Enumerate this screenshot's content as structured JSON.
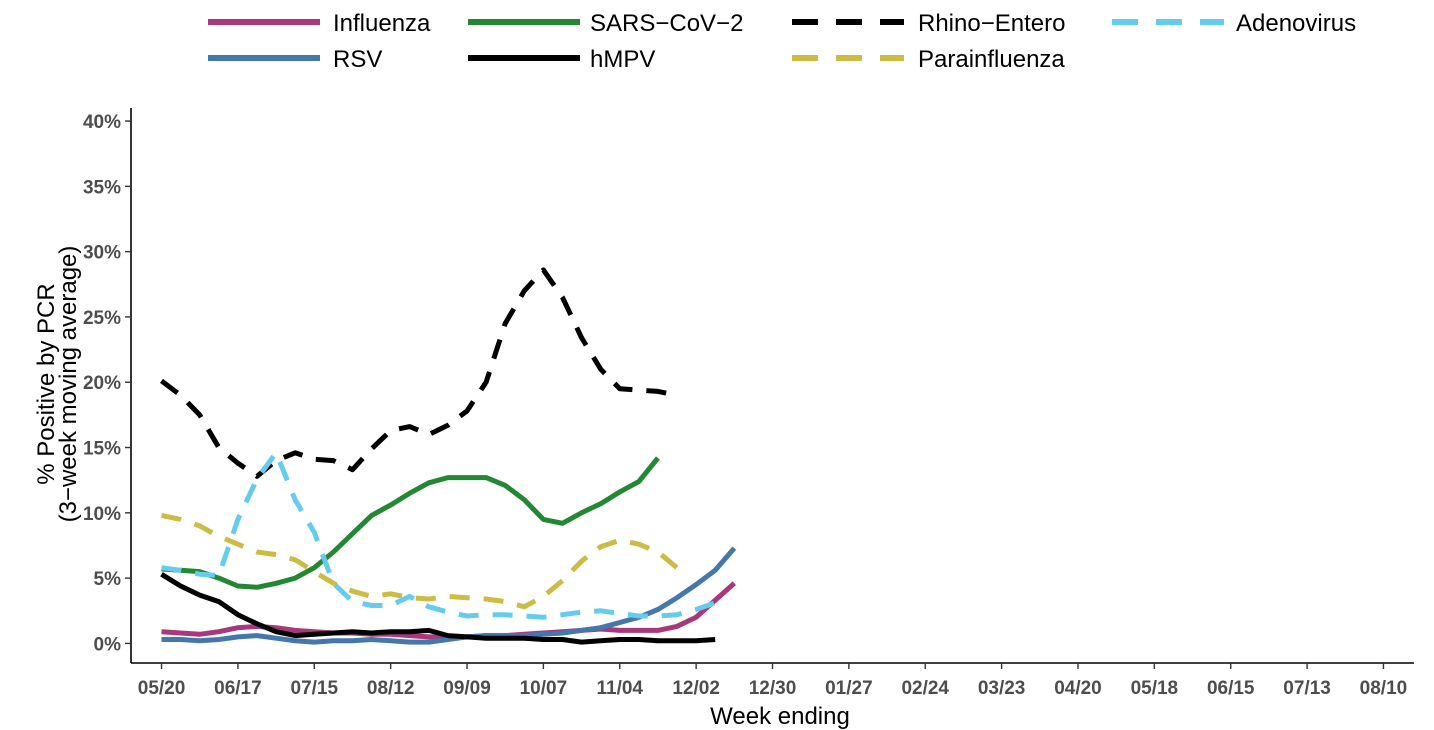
{
  "chart_data": {
    "type": "line",
    "xlabel": "Week ending",
    "ylabel_line1": "% Positive by PCR",
    "ylabel_line2": "(3−week moving average)",
    "x_tick_labels": [
      "05/20",
      "06/17",
      "07/15",
      "08/12",
      "09/09",
      "10/07",
      "11/04",
      "12/02",
      "12/30",
      "01/27",
      "02/24",
      "03/23",
      "04/20",
      "05/18",
      "06/15",
      "07/13",
      "08/10"
    ],
    "y_ticks": [
      0,
      5,
      10,
      15,
      20,
      25,
      30,
      35,
      40
    ],
    "y_tick_labels": [
      "0%",
      "5%",
      "10%",
      "15%",
      "20%",
      "25%",
      "30%",
      "35%",
      "40%"
    ],
    "ylim": [
      -1.5,
      41
    ],
    "week_range": [
      -1.6,
      65.6
    ],
    "grid": false,
    "legend_position": "top",
    "x_weeks": [
      0,
      1,
      2,
      3,
      4,
      5,
      6,
      7,
      8,
      9,
      10,
      11,
      12,
      13,
      14,
      15,
      16,
      17,
      18,
      19,
      20,
      21,
      22,
      23,
      24,
      25,
      26,
      27,
      28,
      29,
      30
    ],
    "series": [
      {
        "name": "Influenza",
        "color": "#A8387A",
        "dash": "solid",
        "values": [
          0.9,
          0.8,
          0.7,
          0.9,
          1.2,
          1.3,
          1.2,
          1.0,
          0.9,
          0.8,
          0.8,
          0.7,
          0.7,
          0.6,
          0.5,
          0.5,
          0.5,
          0.6,
          0.6,
          0.7,
          0.8,
          0.9,
          1.0,
          1.1,
          1.0,
          1.0,
          1.0,
          1.3,
          2.0,
          3.3,
          4.6
        ]
      },
      {
        "name": "RSV",
        "color": "#4477AA",
        "dash": "solid",
        "values": [
          0.3,
          0.3,
          0.2,
          0.3,
          0.5,
          0.6,
          0.4,
          0.2,
          0.1,
          0.2,
          0.2,
          0.3,
          0.2,
          0.1,
          0.1,
          0.3,
          0.5,
          0.6,
          0.6,
          0.6,
          0.7,
          0.8,
          1.0,
          1.2,
          1.6,
          2.0,
          2.6,
          3.5,
          4.5,
          5.6,
          7.3
        ]
      },
      {
        "name": "SARS−CoV−2",
        "color": "#228833",
        "dash": "solid",
        "values": [
          5.7,
          5.6,
          5.5,
          5.0,
          4.4,
          4.3,
          4.6,
          5.0,
          5.8,
          7.0,
          8.4,
          9.8,
          10.6,
          11.5,
          12.3,
          12.7,
          12.7,
          12.7,
          12.1,
          11.0,
          9.5,
          9.2,
          10.0,
          10.7,
          11.6,
          12.4,
          14.2
        ]
      },
      {
        "name": "hMPV",
        "color": "#000000",
        "dash": "solid",
        "values": [
          5.3,
          4.4,
          3.7,
          3.2,
          2.2,
          1.5,
          0.9,
          0.6,
          0.7,
          0.8,
          0.9,
          0.8,
          0.9,
          0.9,
          1.0,
          0.6,
          0.5,
          0.4,
          0.4,
          0.4,
          0.3,
          0.3,
          0.1,
          0.2,
          0.3,
          0.3,
          0.2,
          0.2,
          0.2,
          0.3
        ]
      },
      {
        "name": "Rhino−Entero",
        "color": "#000000",
        "dash": "dashed",
        "values": [
          20.1,
          19.0,
          17.5,
          15.0,
          13.8,
          12.8,
          14.0,
          14.6,
          14.1,
          14.0,
          13.3,
          14.9,
          16.3,
          16.6,
          16.0,
          16.7,
          17.8,
          20.0,
          24.5,
          27.0,
          28.6,
          26.5,
          23.4,
          21.0,
          19.5,
          19.4,
          19.3,
          19.0
        ]
      },
      {
        "name": "Parainfluenza",
        "color": "#CCBB44",
        "dash": "dashed",
        "values": [
          9.8,
          9.5,
          9.0,
          8.2,
          7.6,
          7.0,
          6.8,
          6.4,
          5.5,
          4.6,
          4.0,
          3.6,
          3.8,
          3.5,
          3.4,
          3.6,
          3.5,
          3.4,
          3.2,
          2.8,
          3.6,
          4.8,
          6.3,
          7.4,
          7.9,
          7.6,
          7.0,
          5.8
        ]
      },
      {
        "name": "Adenovirus",
        "color": "#66CCEE",
        "dash": "dashed",
        "values": [
          5.8,
          5.6,
          5.3,
          5.2,
          9.5,
          12.6,
          14.6,
          11.0,
          8.5,
          4.6,
          3.2,
          2.9,
          2.9,
          3.6,
          2.8,
          2.4,
          2.1,
          2.2,
          2.2,
          2.1,
          2.0,
          2.2,
          2.4,
          2.5,
          2.3,
          2.1,
          2.1,
          2.2,
          2.6,
          3.1
        ]
      }
    ]
  }
}
